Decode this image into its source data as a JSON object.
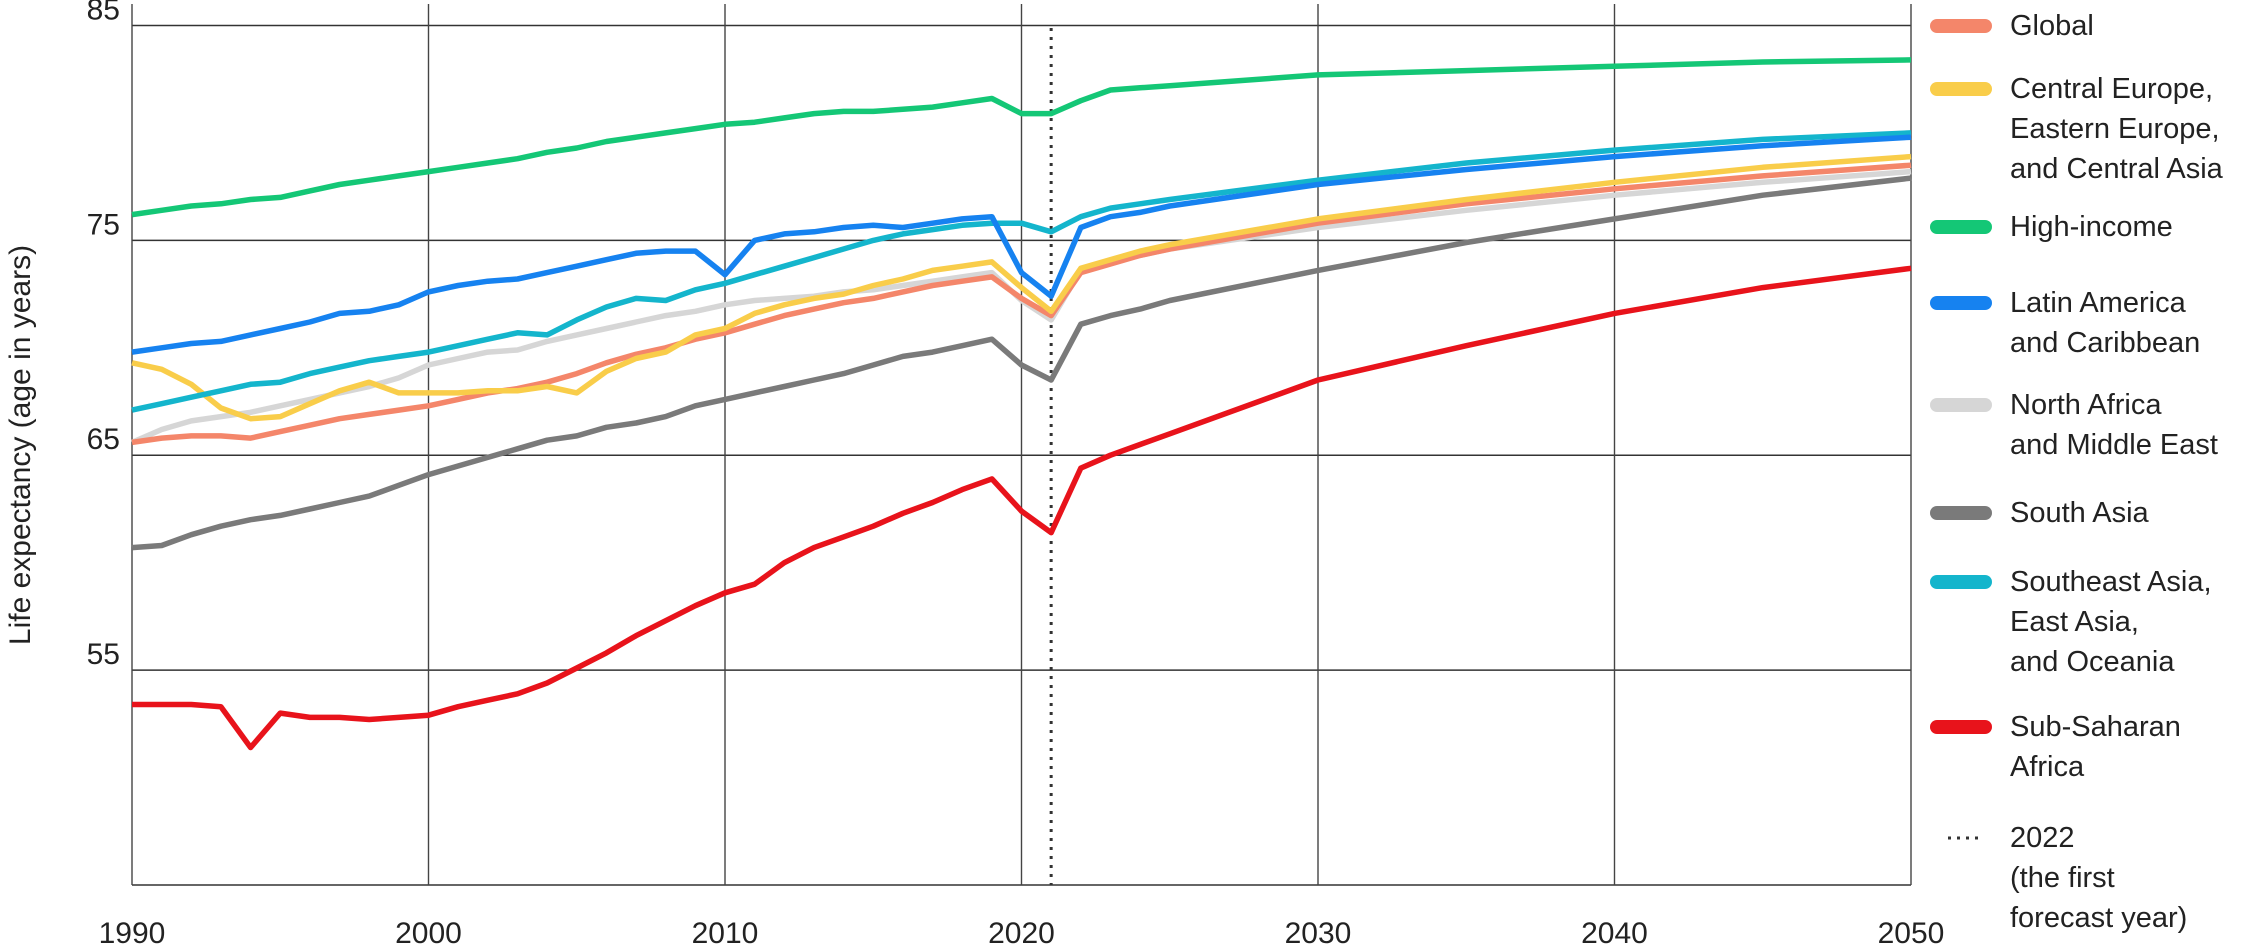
{
  "chart_data": {
    "type": "line",
    "y_label": "Life expectancy (age in years)",
    "x": [
      1990,
      1991,
      1992,
      1993,
      1994,
      1995,
      1996,
      1997,
      1998,
      1999,
      2000,
      2001,
      2002,
      2003,
      2004,
      2005,
      2006,
      2007,
      2008,
      2009,
      2010,
      2011,
      2012,
      2013,
      2014,
      2015,
      2016,
      2017,
      2018,
      2019,
      2020,
      2021,
      2022,
      2023,
      2024,
      2025,
      2030,
      2035,
      2040,
      2045,
      2050
    ],
    "xlim": [
      1990,
      2050
    ],
    "xticks": [
      1990,
      2000,
      2010,
      2020,
      2030,
      2040,
      2050
    ],
    "ylim": [
      45,
      86
    ],
    "yticks": [
      55,
      65,
      75,
      85
    ],
    "grid": true,
    "forecast_line": 2021,
    "forecast_label": "2022\n(the first\nforecast year)",
    "series": [
      {
        "name": "Global",
        "color": "#f4866a",
        "values": [
          65.6,
          65.8,
          65.9,
          65.9,
          65.8,
          66.1,
          66.4,
          66.7,
          66.9,
          67.1,
          67.3,
          67.6,
          67.9,
          68.1,
          68.4,
          68.8,
          69.3,
          69.7,
          70.0,
          70.4,
          70.7,
          71.1,
          71.5,
          71.8,
          72.1,
          72.3,
          72.6,
          72.9,
          73.1,
          73.3,
          72.3,
          71.5,
          73.5,
          73.9,
          74.3,
          74.6,
          75.8,
          76.7,
          77.4,
          78.0,
          78.5
        ]
      },
      {
        "name": "Central Europe,\nEastern Europe,\nand Central Asia",
        "color": "#f9cd4a",
        "values": [
          69.3,
          69.0,
          68.3,
          67.2,
          66.7,
          66.8,
          67.4,
          68.0,
          68.4,
          67.9,
          67.9,
          67.9,
          68.0,
          68.0,
          68.2,
          67.9,
          68.9,
          69.5,
          69.8,
          70.6,
          70.9,
          71.6,
          72.0,
          72.3,
          72.5,
          72.9,
          73.2,
          73.6,
          73.8,
          74.0,
          72.8,
          71.7,
          73.7,
          74.1,
          74.5,
          74.8,
          76.0,
          76.9,
          77.7,
          78.4,
          78.9
        ]
      },
      {
        "name": "High-income",
        "color": "#14c776",
        "values": [
          76.2,
          76.4,
          76.6,
          76.7,
          76.9,
          77.0,
          77.3,
          77.6,
          77.8,
          78.0,
          78.2,
          78.4,
          78.6,
          78.8,
          79.1,
          79.3,
          79.6,
          79.8,
          80.0,
          80.2,
          80.4,
          80.5,
          80.7,
          80.9,
          81.0,
          81.0,
          81.1,
          81.2,
          81.4,
          81.6,
          80.9,
          80.9,
          81.5,
          82.0,
          82.1,
          82.2,
          82.7,
          82.9,
          83.1,
          83.3,
          83.4
        ]
      },
      {
        "name": "Latin America\nand Caribbean",
        "color": "#1682f0",
        "values": [
          69.8,
          70.0,
          70.2,
          70.3,
          70.6,
          70.9,
          71.2,
          71.6,
          71.7,
          72.0,
          72.6,
          72.9,
          73.1,
          73.2,
          73.5,
          73.8,
          74.1,
          74.4,
          74.5,
          74.5,
          73.4,
          75.0,
          75.3,
          75.4,
          75.6,
          75.7,
          75.6,
          75.8,
          76.0,
          76.1,
          73.5,
          72.4,
          75.6,
          76.1,
          76.3,
          76.6,
          77.6,
          78.3,
          78.9,
          79.4,
          79.8
        ]
      },
      {
        "name": "North Africa\nand Middle East",
        "color": "#d6d6d6",
        "values": [
          65.6,
          66.2,
          66.6,
          66.8,
          67.0,
          67.3,
          67.6,
          67.9,
          68.2,
          68.6,
          69.2,
          69.5,
          69.8,
          69.9,
          70.3,
          70.6,
          70.9,
          71.2,
          71.5,
          71.7,
          72.0,
          72.2,
          72.3,
          72.4,
          72.6,
          72.7,
          72.9,
          73.1,
          73.3,
          73.5,
          72.2,
          71.3,
          73.6,
          74.0,
          74.3,
          74.6,
          75.6,
          76.4,
          77.1,
          77.7,
          78.2
        ]
      },
      {
        "name": "South Asia",
        "color": "#7a7a7a",
        "values": [
          60.7,
          60.8,
          61.3,
          61.7,
          62.0,
          62.2,
          62.5,
          62.8,
          63.1,
          63.6,
          64.1,
          64.5,
          64.9,
          65.3,
          65.7,
          65.9,
          66.3,
          66.5,
          66.8,
          67.3,
          67.6,
          67.9,
          68.2,
          68.5,
          68.8,
          69.2,
          69.6,
          69.8,
          70.1,
          70.4,
          69.2,
          68.5,
          71.1,
          71.5,
          71.8,
          72.2,
          73.6,
          74.9,
          76.0,
          77.1,
          77.9
        ]
      },
      {
        "name": "Southeast Asia,\nEast Asia,\nand Oceania",
        "color": "#14b5cc",
        "values": [
          67.1,
          67.4,
          67.7,
          68.0,
          68.3,
          68.4,
          68.8,
          69.1,
          69.4,
          69.6,
          69.8,
          70.1,
          70.4,
          70.7,
          70.6,
          71.3,
          71.9,
          72.3,
          72.2,
          72.7,
          73.0,
          73.4,
          73.8,
          74.2,
          74.6,
          75.0,
          75.3,
          75.5,
          75.7,
          75.8,
          75.8,
          75.4,
          76.1,
          76.5,
          76.7,
          76.9,
          77.8,
          78.6,
          79.2,
          79.7,
          80.0
        ]
      },
      {
        "name": "Sub-Saharan\nAfrica",
        "color": "#e8131b",
        "values": [
          53.4,
          53.4,
          53.4,
          53.3,
          51.4,
          53.0,
          52.8,
          52.8,
          52.7,
          52.8,
          52.9,
          53.3,
          53.6,
          53.9,
          54.4,
          55.1,
          55.8,
          56.6,
          57.3,
          58.0,
          58.6,
          59.0,
          60.0,
          60.7,
          61.2,
          61.7,
          62.3,
          62.8,
          63.4,
          63.9,
          62.4,
          61.4,
          64.4,
          65.0,
          65.5,
          66.0,
          68.5,
          70.1,
          71.6,
          72.8,
          73.7
        ]
      }
    ]
  }
}
